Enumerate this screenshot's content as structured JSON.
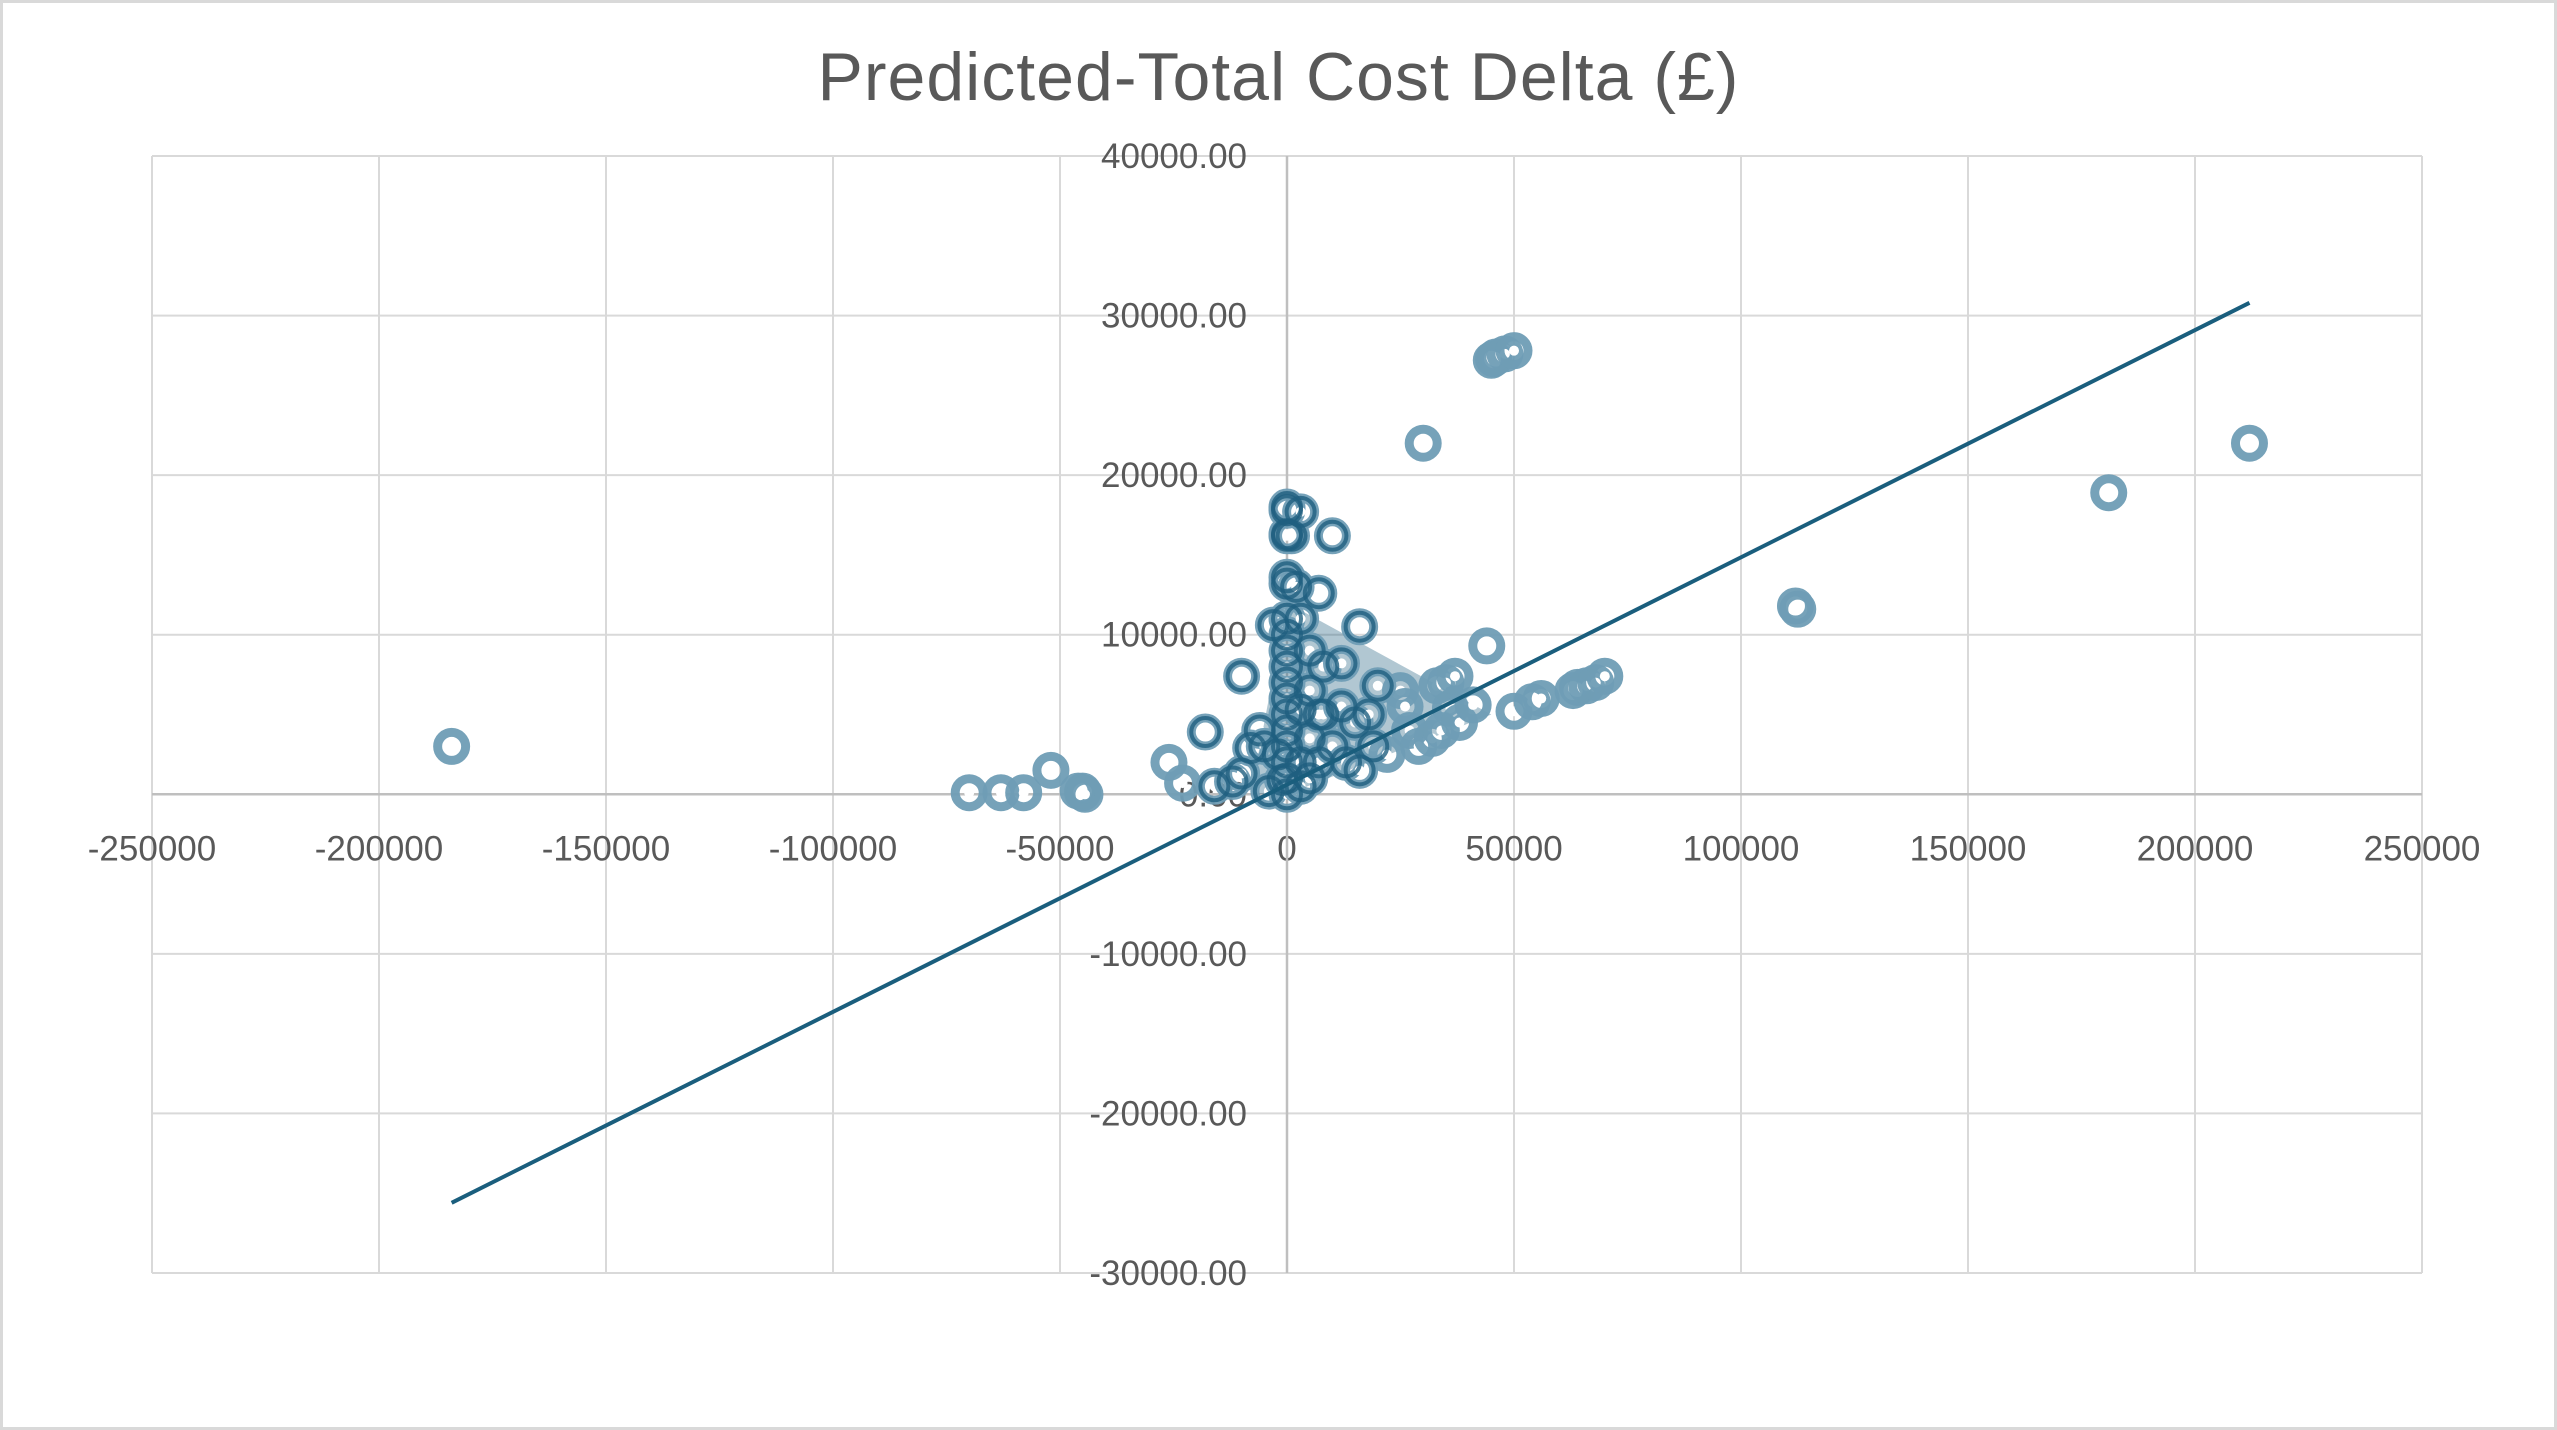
{
  "chart_data": {
    "type": "scatter",
    "title": "Predicted-Total Cost Delta (£)",
    "xlim": [
      -250000,
      250000
    ],
    "ylim": [
      -30000,
      40000
    ],
    "x_ticks": [
      "-250000",
      "-200000",
      "-150000",
      "-100000",
      "-50000",
      "0",
      "50000",
      "100000",
      "150000",
      "200000",
      "250000"
    ],
    "y_ticks": [
      "-30000.00",
      "-20000.00",
      "-10000.00",
      "0.00",
      "10000.00",
      "20000.00",
      "30000.00",
      "40000.00"
    ],
    "grid": true,
    "legend": "none",
    "marker_color": "#1f5f7f",
    "marker_color_light": "#6f9db5",
    "trendline_color": "#1a5e7d",
    "trendline": {
      "x": [
        -184000,
        212000
      ],
      "y": [
        -25600,
        30800
      ]
    },
    "points": [
      [
        -184000,
        3000
      ],
      [
        -70000,
        100
      ],
      [
        -63000,
        100
      ],
      [
        -58000,
        100
      ],
      [
        -52000,
        1500
      ],
      [
        -46000,
        200
      ],
      [
        -45000,
        200
      ],
      [
        -45000,
        100
      ],
      [
        -44500,
        0
      ],
      [
        -26000,
        2000
      ],
      [
        -23000,
        700
      ],
      [
        -18000,
        3900
      ],
      [
        -16000,
        500
      ],
      [
        -12000,
        800
      ],
      [
        -10000,
        7400
      ],
      [
        -10000,
        1300
      ],
      [
        -8000,
        2900
      ],
      [
        -6000,
        4000
      ],
      [
        -5000,
        3000
      ],
      [
        -4000,
        200
      ],
      [
        -3000,
        10600
      ],
      [
        -2000,
        2500
      ],
      [
        -1000,
        900
      ],
      [
        0,
        18000
      ],
      [
        0,
        17800
      ],
      [
        0,
        16300
      ],
      [
        0,
        16200
      ],
      [
        0,
        13600
      ],
      [
        0,
        13200
      ],
      [
        0,
        11000
      ],
      [
        0,
        10000
      ],
      [
        0,
        9000
      ],
      [
        0,
        8000
      ],
      [
        0,
        7000
      ],
      [
        0,
        6000
      ],
      [
        0,
        5000
      ],
      [
        0,
        4000
      ],
      [
        0,
        3000
      ],
      [
        0,
        2000
      ],
      [
        0,
        1000
      ],
      [
        0,
        0
      ],
      [
        1000,
        16200
      ],
      [
        2000,
        13000
      ],
      [
        3000,
        17700
      ],
      [
        3000,
        11000
      ],
      [
        3000,
        5300
      ],
      [
        3000,
        2000
      ],
      [
        3000,
        500
      ],
      [
        5000,
        9000
      ],
      [
        5000,
        6500
      ],
      [
        5000,
        3500
      ],
      [
        5000,
        1000
      ],
      [
        7000,
        12600
      ],
      [
        7000,
        5000
      ],
      [
        7000,
        2000
      ],
      [
        8000,
        8000
      ],
      [
        8000,
        5000
      ],
      [
        10000,
        16200
      ],
      [
        10000,
        3000
      ],
      [
        12000,
        8200
      ],
      [
        12000,
        5500
      ],
      [
        13000,
        2000
      ],
      [
        15000,
        4500
      ],
      [
        16000,
        10500
      ],
      [
        16000,
        1500
      ],
      [
        18000,
        5000
      ],
      [
        19000,
        3000
      ],
      [
        20000,
        6800
      ],
      [
        22000,
        2500
      ],
      [
        25000,
        6500
      ],
      [
        26000,
        5500
      ],
      [
        27000,
        4000
      ],
      [
        29000,
        3000
      ],
      [
        30000,
        22000
      ],
      [
        32000,
        3500
      ],
      [
        33000,
        6800
      ],
      [
        34000,
        4000
      ],
      [
        35000,
        7000
      ],
      [
        36000,
        5400
      ],
      [
        37000,
        7400
      ],
      [
        38000,
        4500
      ],
      [
        41000,
        5600
      ],
      [
        44000,
        9300
      ],
      [
        45000,
        27200
      ],
      [
        45500,
        27300
      ],
      [
        46000,
        27400
      ],
      [
        48000,
        27600
      ],
      [
        50000,
        27800
      ],
      [
        50000,
        5200
      ],
      [
        54000,
        5800
      ],
      [
        56000,
        6000
      ],
      [
        63000,
        6500
      ],
      [
        64000,
        6700
      ],
      [
        66000,
        6800
      ],
      [
        68000,
        7000
      ],
      [
        70000,
        7400
      ],
      [
        112000,
        11800
      ],
      [
        112500,
        11600
      ],
      [
        181000,
        18900
      ],
      [
        212000,
        22000
      ]
    ]
  }
}
